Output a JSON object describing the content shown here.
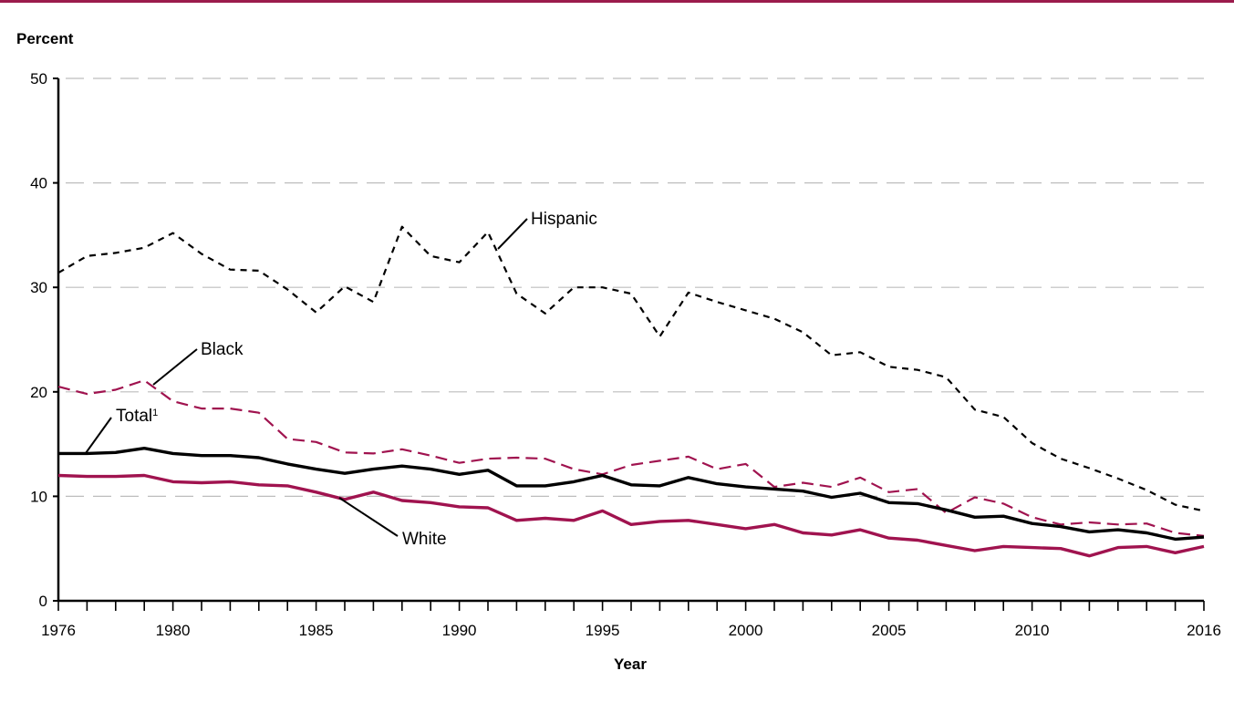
{
  "colors": {
    "top_rule": "#9b1b4c",
    "total": "#000000",
    "white": "#a0134f",
    "black": "#a0134f",
    "hispanic": "#000000",
    "grid": "#bdbdbd"
  },
  "chart_data": {
    "type": "line",
    "title": "",
    "ylabel": "Percent",
    "xlabel": "Year",
    "ylim": [
      0,
      50
    ],
    "xlim": [
      1976,
      2016
    ],
    "yticks": [
      0,
      10,
      20,
      30,
      40,
      50
    ],
    "xticks": [
      1976,
      1980,
      1985,
      1990,
      1995,
      2000,
      2005,
      2010,
      2016
    ],
    "grid": "horizontal dashed",
    "legend": "inline labels",
    "x": [
      1976,
      1977,
      1978,
      1979,
      1980,
      1981,
      1982,
      1983,
      1984,
      1985,
      1986,
      1987,
      1988,
      1989,
      1990,
      1991,
      1992,
      1993,
      1994,
      1995,
      1996,
      1997,
      1998,
      1999,
      2000,
      2001,
      2002,
      2003,
      2004,
      2005,
      2006,
      2007,
      2008,
      2009,
      2010,
      2011,
      2012,
      2013,
      2014,
      2015,
      2016
    ],
    "series": [
      {
        "key": "hispanic",
        "name": "Hispanic",
        "style": "dotted-dash",
        "values": [
          31.4,
          33.0,
          33.3,
          33.8,
          35.2,
          33.2,
          31.7,
          31.6,
          29.8,
          27.6,
          30.1,
          28.6,
          35.8,
          33.0,
          32.4,
          35.3,
          29.4,
          27.5,
          30.0,
          30.0,
          29.4,
          25.3,
          29.5,
          28.6,
          27.8,
          27.0,
          25.7,
          23.5,
          23.8,
          22.4,
          22.1,
          21.4,
          18.3,
          17.6,
          15.1,
          13.6,
          12.7,
          11.7,
          10.6,
          9.2,
          8.6
        ]
      },
      {
        "key": "black",
        "name": "Black",
        "style": "long-dash",
        "values": [
          20.5,
          19.8,
          20.2,
          21.1,
          19.1,
          18.4,
          18.4,
          18.0,
          15.5,
          15.2,
          14.2,
          14.1,
          14.5,
          13.9,
          13.2,
          13.6,
          13.7,
          13.6,
          12.6,
          12.1,
          13.0,
          13.4,
          13.8,
          12.6,
          13.1,
          10.9,
          11.3,
          10.9,
          11.8,
          10.4,
          10.7,
          8.4,
          9.9,
          9.3,
          8.0,
          7.3,
          7.5,
          7.3,
          7.4,
          6.5,
          6.2
        ]
      },
      {
        "key": "total",
        "name": "Total",
        "superscript": "1",
        "style": "solid",
        "values": [
          14.1,
          14.1,
          14.2,
          14.6,
          14.1,
          13.9,
          13.9,
          13.7,
          13.1,
          12.6,
          12.2,
          12.6,
          12.9,
          12.6,
          12.1,
          12.5,
          11.0,
          11.0,
          11.4,
          12.0,
          11.1,
          11.0,
          11.8,
          11.2,
          10.9,
          10.7,
          10.5,
          9.9,
          10.3,
          9.4,
          9.3,
          8.7,
          8.0,
          8.1,
          7.4,
          7.1,
          6.6,
          6.8,
          6.5,
          5.9,
          6.1
        ]
      },
      {
        "key": "white",
        "name": "White",
        "style": "solid",
        "values": [
          12.0,
          11.9,
          11.9,
          12.0,
          11.4,
          11.3,
          11.4,
          11.1,
          11.0,
          10.4,
          9.7,
          10.4,
          9.6,
          9.4,
          9.0,
          8.9,
          7.7,
          7.9,
          7.7,
          8.6,
          7.3,
          7.6,
          7.7,
          7.3,
          6.9,
          7.3,
          6.5,
          6.3,
          6.8,
          6.0,
          5.8,
          5.3,
          4.8,
          5.2,
          5.1,
          5.0,
          4.3,
          5.1,
          5.2,
          4.6,
          5.2
        ]
      }
    ]
  }
}
